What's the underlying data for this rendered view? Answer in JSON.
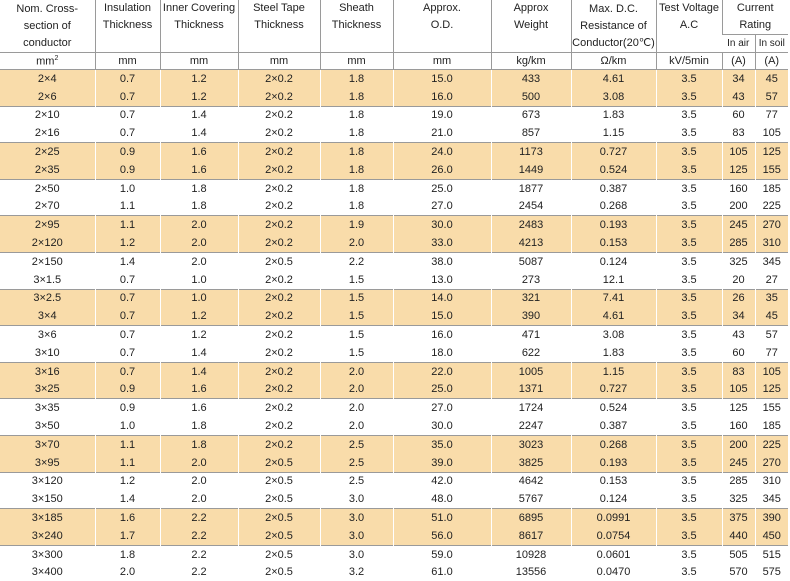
{
  "headers": {
    "nom_cross": [
      "Nom. Cross-",
      "section of",
      "conductor"
    ],
    "insulation": [
      "Insulation",
      "Thickness"
    ],
    "inner_covering": [
      "Inner Covering",
      "Thickness"
    ],
    "steel_tape": [
      "Steel Tape",
      "Thickness"
    ],
    "sheath": [
      "Sheath",
      "Thickness"
    ],
    "od": [
      "Approx.",
      "O.D."
    ],
    "weight": [
      "Approx",
      "Weight"
    ],
    "resistance": [
      "Max. D.C.",
      "Resistance of",
      "Conductor(20℃)"
    ],
    "test_voltage": [
      "Test Voltage",
      "A.C"
    ],
    "current_rating": [
      "Current",
      "Rating"
    ],
    "in_air": "In air",
    "in_soil": "In soil"
  },
  "units": {
    "nom_cross": "mm",
    "nom_cross_sup": "2",
    "insulation": "mm",
    "inner_covering": "mm",
    "steel_tape": "mm",
    "sheath": "mm",
    "od": "mm",
    "weight": "kg/km",
    "resistance": "Ω/km",
    "test_voltage": "kV/5min",
    "in_air": "(A)",
    "in_soil": "(A)"
  },
  "rows": [
    [
      "2×4",
      "0.7",
      "1.2",
      "2×0.2",
      "1.8",
      "15.0",
      "433",
      "4.61",
      "3.5",
      "34",
      "45"
    ],
    [
      "2×6",
      "0.7",
      "1.2",
      "2×0.2",
      "1.8",
      "16.0",
      "500",
      "3.08",
      "3.5",
      "43",
      "57"
    ],
    [
      "2×10",
      "0.7",
      "1.4",
      "2×0.2",
      "1.8",
      "19.0",
      "673",
      "1.83",
      "3.5",
      "60",
      "77"
    ],
    [
      "2×16",
      "0.7",
      "1.4",
      "2×0.2",
      "1.8",
      "21.0",
      "857",
      "1.15",
      "3.5",
      "83",
      "105"
    ],
    [
      "2×25",
      "0.9",
      "1.6",
      "2×0.2",
      "1.8",
      "24.0",
      "1173",
      "0.727",
      "3.5",
      "105",
      "125"
    ],
    [
      "2×35",
      "0.9",
      "1.6",
      "2×0.2",
      "1.8",
      "26.0",
      "1449",
      "0.524",
      "3.5",
      "125",
      "155"
    ],
    [
      "2×50",
      "1.0",
      "1.8",
      "2×0.2",
      "1.8",
      "25.0",
      "1877",
      "0.387",
      "3.5",
      "160",
      "185"
    ],
    [
      "2×70",
      "1.1",
      "1.8",
      "2×0.2",
      "1.8",
      "27.0",
      "2454",
      "0.268",
      "3.5",
      "200",
      "225"
    ],
    [
      "2×95",
      "1.1",
      "2.0",
      "2×0.2",
      "1.9",
      "30.0",
      "2483",
      "0.193",
      "3.5",
      "245",
      "270"
    ],
    [
      "2×120",
      "1.2",
      "2.0",
      "2×0.2",
      "2.0",
      "33.0",
      "4213",
      "0.153",
      "3.5",
      "285",
      "310"
    ],
    [
      "2×150",
      "1.4",
      "2.0",
      "2×0.5",
      "2.2",
      "38.0",
      "5087",
      "0.124",
      "3.5",
      "325",
      "345"
    ],
    [
      "3×1.5",
      "0.7",
      "1.0",
      "2×0.2",
      "1.5",
      "13.0",
      "273",
      "12.1",
      "3.5",
      "20",
      "27"
    ],
    [
      "3×2.5",
      "0.7",
      "1.0",
      "2×0.2",
      "1.5",
      "14.0",
      "321",
      "7.41",
      "3.5",
      "26",
      "35"
    ],
    [
      "3×4",
      "0.7",
      "1.2",
      "2×0.2",
      "1.5",
      "15.0",
      "390",
      "4.61",
      "3.5",
      "34",
      "45"
    ],
    [
      "3×6",
      "0.7",
      "1.2",
      "2×0.2",
      "1.5",
      "16.0",
      "471",
      "3.08",
      "3.5",
      "43",
      "57"
    ],
    [
      "3×10",
      "0.7",
      "1.4",
      "2×0.2",
      "1.5",
      "18.0",
      "622",
      "1.83",
      "3.5",
      "60",
      "77"
    ],
    [
      "3×16",
      "0.7",
      "1.4",
      "2×0.2",
      "2.0",
      "22.0",
      "1005",
      "1.15",
      "3.5",
      "83",
      "105"
    ],
    [
      "3×25",
      "0.9",
      "1.6",
      "2×0.2",
      "2.0",
      "25.0",
      "1371",
      "0.727",
      "3.5",
      "105",
      "125"
    ],
    [
      "3×35",
      "0.9",
      "1.6",
      "2×0.2",
      "2.0",
      "27.0",
      "1724",
      "0.524",
      "3.5",
      "125",
      "155"
    ],
    [
      "3×50",
      "1.0",
      "1.8",
      "2×0.2",
      "2.0",
      "30.0",
      "2247",
      "0.387",
      "3.5",
      "160",
      "185"
    ],
    [
      "3×70",
      "1.1",
      "1.8",
      "2×0.2",
      "2.5",
      "35.0",
      "3023",
      "0.268",
      "3.5",
      "200",
      "225"
    ],
    [
      "3×95",
      "1.1",
      "2.0",
      "2×0.5",
      "2.5",
      "39.0",
      "3825",
      "0.193",
      "3.5",
      "245",
      "270"
    ],
    [
      "3×120",
      "1.2",
      "2.0",
      "2×0.5",
      "2.5",
      "42.0",
      "4642",
      "0.153",
      "3.5",
      "285",
      "310"
    ],
    [
      "3×150",
      "1.4",
      "2.0",
      "2×0.5",
      "3.0",
      "48.0",
      "5767",
      "0.124",
      "3.5",
      "325",
      "345"
    ],
    [
      "3×185",
      "1.6",
      "2.2",
      "2×0.5",
      "3.0",
      "51.0",
      "6895",
      "0.0991",
      "3.5",
      "375",
      "390"
    ],
    [
      "3×240",
      "1.7",
      "2.2",
      "2×0.5",
      "3.0",
      "56.0",
      "8617",
      "0.0754",
      "3.5",
      "440",
      "450"
    ],
    [
      "3×300",
      "1.8",
      "2.2",
      "2×0.5",
      "3.0",
      "59.0",
      "10928",
      "0.0601",
      "3.5",
      "505",
      "515"
    ],
    [
      "3×400",
      "2.0",
      "2.2",
      "2×0.5",
      "3.2",
      "61.0",
      "13556",
      "0.0470",
      "3.5",
      "570",
      "575"
    ]
  ],
  "band_color": "#f9dcaa"
}
